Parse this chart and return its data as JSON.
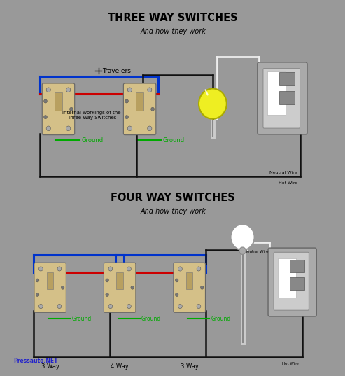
{
  "bg_color": "#999999",
  "panel_bg": "#999999",
  "white_sep": "#dddddd",
  "title1": "THREE WAY SWITCHES",
  "subtitle1": "And how they work",
  "title2": "FOUR WAY SWITCHES",
  "subtitle2": "And how they work",
  "switch_color": "#d4c088",
  "wire_blue": "#0033cc",
  "wire_red": "#cc0000",
  "wire_black": "#111111",
  "wire_white": "#eeeeee",
  "ground_color": "#00aa00",
  "travelers_label": "Travelers",
  "internal_label": "Internal workings of the\nThree Way Switches",
  "neutral_wire": "Neutral Wire",
  "hot_wire": "Hot Wire",
  "ground_label": "Ground",
  "label_3way_left": "3 Way",
  "label_4way": "4 Way",
  "label_3way_right": "3 Way",
  "watermark": "Pressauto.NET",
  "bulb_color": "#eeee22",
  "bulb_outline": "#aaaa00",
  "panel_outer": "#aaaaaa",
  "panel_inner": "#cccccc",
  "panel_breaker": "#888888"
}
